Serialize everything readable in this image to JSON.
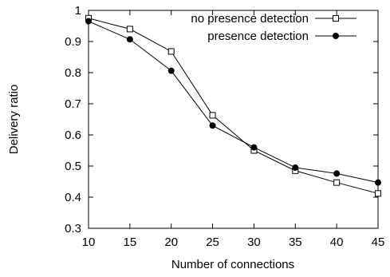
{
  "chart_data": {
    "type": "line",
    "title": "",
    "xlabel": "Number of connections",
    "ylabel": "Delivery ratio",
    "xlim": [
      10,
      45
    ],
    "ylim": [
      0.3,
      1.0
    ],
    "x_ticks": [
      "10",
      "15",
      "20",
      "25",
      "30",
      "35",
      "40",
      "45"
    ],
    "y_ticks": [
      "0.3",
      "0.4",
      "0.5",
      "0.6",
      "0.7",
      "0.8",
      "0.9",
      "1"
    ],
    "grid": false,
    "legend_position": "top-right",
    "x": [
      10,
      15,
      20,
      25,
      30,
      35,
      40,
      45
    ],
    "series": [
      {
        "name": "no presence detection",
        "marker": "open-square",
        "color": "#000000",
        "values": [
          0.975,
          0.94,
          0.868,
          0.663,
          0.55,
          0.485,
          0.447,
          0.412
        ]
      },
      {
        "name": "presence detection",
        "marker": "filled-circle",
        "color": "#000000",
        "values": [
          0.965,
          0.907,
          0.806,
          0.63,
          0.56,
          0.495,
          0.476,
          0.447
        ]
      }
    ]
  }
}
